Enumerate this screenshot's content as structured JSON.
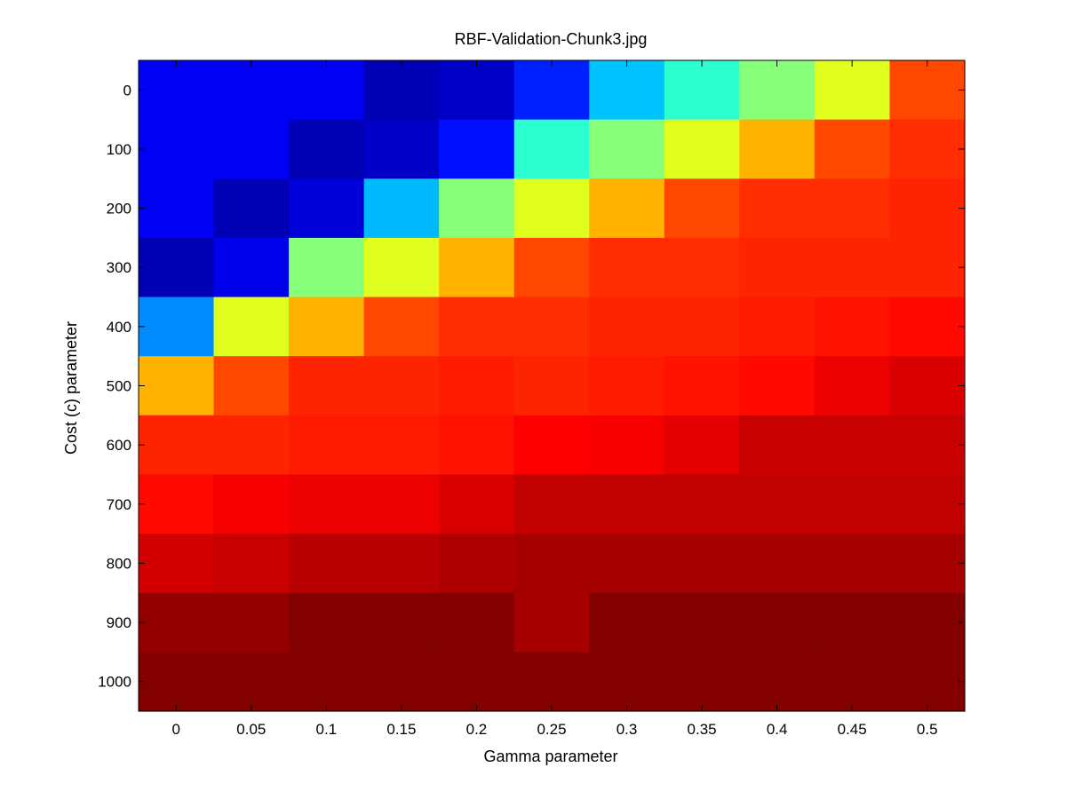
{
  "chart_data": {
    "type": "heatmap",
    "title": "RBF-Validation-Chunk3.jpg",
    "xlabel": "Gamma parameter",
    "ylabel": "Cost (c) parameter",
    "x": [
      "0",
      "0.05",
      "0.1",
      "0.15",
      "0.2",
      "0.25",
      "0.3",
      "0.35",
      "0.4",
      "0.45",
      "0.5"
    ],
    "y": [
      "0",
      "100",
      "200",
      "300",
      "400",
      "500",
      "600",
      "700",
      "800",
      "900",
      "1000"
    ],
    "colormap": "jet",
    "value_range": [
      0,
      1
    ],
    "values": [
      [
        0.13,
        0.13,
        0.13,
        0.06,
        0.08,
        0.18,
        0.36,
        0.48,
        0.58,
        0.68,
        0.92
      ],
      [
        0.13,
        0.13,
        0.06,
        0.08,
        0.16,
        0.48,
        0.58,
        0.68,
        0.8,
        0.92,
        0.95
      ],
      [
        0.13,
        0.06,
        0.1,
        0.35,
        0.58,
        0.68,
        0.8,
        0.92,
        0.95,
        0.95,
        0.96
      ],
      [
        0.06,
        0.12,
        0.58,
        0.68,
        0.8,
        0.92,
        0.95,
        0.95,
        0.96,
        0.96,
        0.96
      ],
      [
        0.3,
        0.68,
        0.8,
        0.92,
        0.95,
        0.95,
        0.96,
        0.96,
        0.97,
        0.98,
        0.99
      ],
      [
        0.8,
        0.92,
        0.96,
        0.96,
        0.97,
        0.96,
        0.97,
        0.98,
        0.99,
        1.02,
        1.04
      ],
      [
        0.96,
        0.96,
        0.97,
        0.97,
        0.98,
        1.0,
        1.01,
        1.03,
        1.06,
        1.06,
        1.06
      ],
      [
        0.99,
        1.01,
        1.02,
        1.02,
        1.04,
        1.07,
        1.07,
        1.07,
        1.07,
        1.07,
        1.07
      ],
      [
        1.05,
        1.06,
        1.08,
        1.08,
        1.09,
        1.1,
        1.1,
        1.1,
        1.1,
        1.1,
        1.1
      ],
      [
        1.12,
        1.12,
        1.14,
        1.14,
        1.14,
        1.1,
        1.14,
        1.14,
        1.14,
        1.14,
        1.14
      ],
      [
        1.14,
        1.14,
        1.14,
        1.14,
        1.14,
        1.14,
        1.14,
        1.14,
        1.14,
        1.14,
        1.14
      ]
    ]
  }
}
